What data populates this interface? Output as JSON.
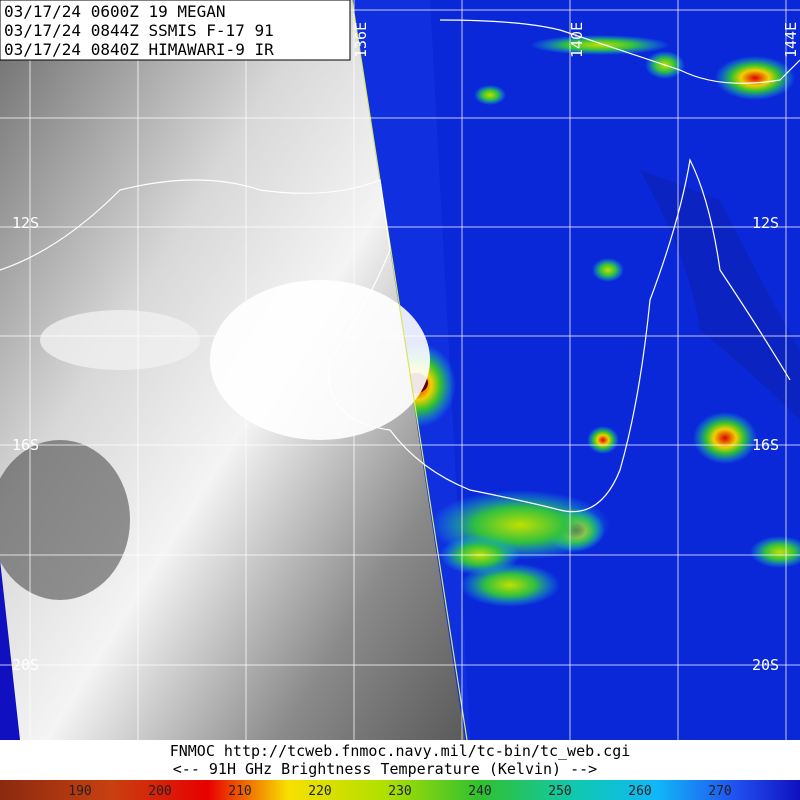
{
  "header": {
    "lines": [
      "03/17/24 0600Z  19 MEGAN",
      "03/17/24 0844Z  SSMIS F-17 91",
      "03/17/24 0840Z  HIMAWARI-9 IR"
    ]
  },
  "grid_labels": {
    "latitude": [
      "12S",
      "16S",
      "20S"
    ],
    "longitude": [
      "136E",
      "140E",
      "144E"
    ]
  },
  "footer": {
    "source": "FNMOC  http://tcweb.fnmoc.navy.mil/tc-bin/tc_web.cgi",
    "legend_title": "<--   91H GHz Brightness Temperature (Kelvin)   -->"
  },
  "colorbar": {
    "labels": [
      "190",
      "200",
      "210",
      "220",
      "230",
      "240",
      "250",
      "260",
      "270"
    ]
  }
}
